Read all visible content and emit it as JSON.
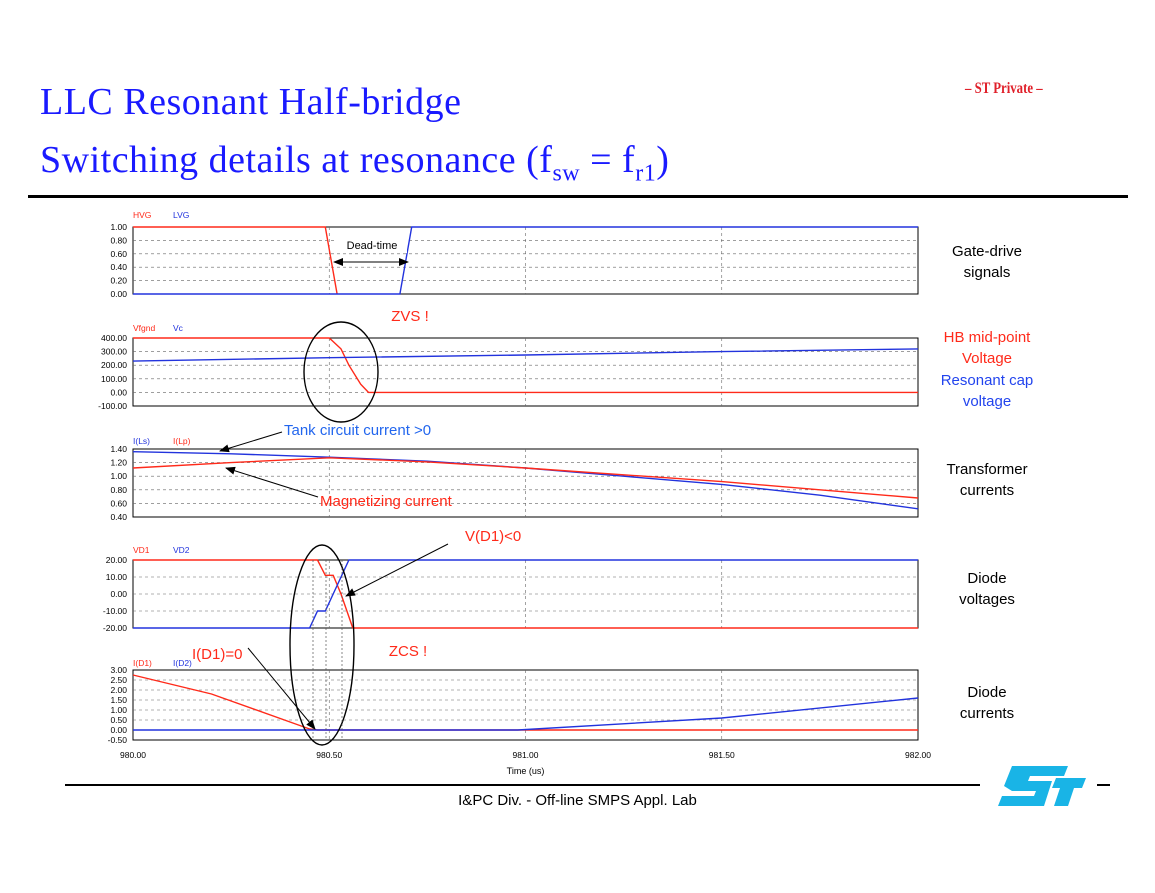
{
  "header": {
    "title_line1": "LLC Resonant Half-bridge",
    "title_line2_prefix": "Switching details at resonance (f",
    "title_line2_sub1": "sw",
    "title_line2_mid": " = f",
    "title_line2_sub2": "r1",
    "title_line2_suffix": ")",
    "badge": "– ST Private –"
  },
  "right_labels": {
    "gate": [
      "Gate-drive",
      "signals"
    ],
    "hb": [
      "HB mid-point",
      "Voltage"
    ],
    "cap": [
      "Resonant cap",
      "voltage"
    ],
    "transformer": [
      "Transformer",
      "currents"
    ],
    "diode_v": [
      "Diode",
      "voltages"
    ],
    "diode_i": [
      "Diode",
      "currents"
    ]
  },
  "annotations": {
    "dead_time": "Dead-time",
    "zvs": "ZVS !",
    "tank": "Tank circuit current >0",
    "magnetizing": "Magnetizing current",
    "vd1": "V(D1)<0",
    "id1": "I(D1)=0",
    "zcs": "ZCS !"
  },
  "footer": {
    "text": "I&PC Div. - Off-line SMPS Appl. Lab",
    "logo": "ST"
  },
  "colors": {
    "red": "#ff2a1a",
    "blue": "#2233dd",
    "title": "#1a1aff",
    "logo": "#19b4e6"
  },
  "chart_data": [
    {
      "type": "line",
      "legend": [
        "HVG",
        "LVG"
      ],
      "ylim": [
        0,
        1
      ],
      "yticks": [
        "1.00",
        "0.80",
        "0.60",
        "0.40",
        "0.20",
        "0.00"
      ],
      "series": [
        {
          "name": "HVG",
          "color": "red",
          "points": [
            [
              980.0,
              1.0
            ],
            [
              980.49,
              1.0
            ],
            [
              980.52,
              0.0
            ]
          ]
        },
        {
          "name": "LVG",
          "color": "blue",
          "points": [
            [
              980.0,
              0.0
            ],
            [
              980.68,
              0.0
            ],
            [
              980.71,
              1.0
            ],
            [
              982.0,
              1.0
            ]
          ]
        }
      ]
    },
    {
      "type": "line",
      "legend": [
        "Vfgnd",
        "Vc"
      ],
      "ylim": [
        -100,
        400
      ],
      "yticks": [
        "400.00",
        "300.00",
        "200.00",
        "100.00",
        "0.00",
        "-100.00"
      ],
      "series": [
        {
          "name": "Vfgnd",
          "color": "red",
          "points": [
            [
              980.0,
              400
            ],
            [
              980.5,
              400
            ],
            [
              980.53,
              320
            ],
            [
              980.55,
              200
            ],
            [
              980.58,
              60
            ],
            [
              980.6,
              0
            ],
            [
              982.0,
              0
            ]
          ]
        },
        {
          "name": "Vc",
          "color": "blue",
          "points": [
            [
              980.0,
              230
            ],
            [
              980.5,
              255
            ],
            [
              981.0,
              275
            ],
            [
              981.5,
              300
            ],
            [
              982.0,
              320
            ]
          ]
        }
      ]
    },
    {
      "type": "line",
      "legend": [
        "I(Ls)",
        "I(Lp)"
      ],
      "ylim": [
        0.4,
        1.4
      ],
      "yticks": [
        "1.40",
        "1.20",
        "1.00",
        "0.80",
        "0.60",
        "0.40"
      ],
      "series": [
        {
          "name": "I(Ls)",
          "color": "blue",
          "points": [
            [
              980.0,
              1.36
            ],
            [
              980.25,
              1.33
            ],
            [
              980.5,
              1.28
            ],
            [
              980.75,
              1.22
            ],
            [
              981.0,
              1.12
            ],
            [
              981.25,
              1.0
            ],
            [
              981.5,
              0.88
            ],
            [
              981.75,
              0.72
            ],
            [
              982.0,
              0.52
            ]
          ]
        },
        {
          "name": "I(Lp)",
          "color": "red",
          "points": [
            [
              980.0,
              1.12
            ],
            [
              980.25,
              1.2
            ],
            [
              980.5,
              1.27
            ],
            [
              980.75,
              1.21
            ],
            [
              981.0,
              1.12
            ],
            [
              981.25,
              1.02
            ],
            [
              981.5,
              0.92
            ],
            [
              981.75,
              0.8
            ],
            [
              982.0,
              0.68
            ]
          ]
        }
      ]
    },
    {
      "type": "line",
      "legend": [
        "VD1",
        "VD2"
      ],
      "ylim": [
        -20,
        20
      ],
      "yticks": [
        "20.00",
        "10.00",
        "0.00",
        "-10.00",
        "-20.00"
      ],
      "series": [
        {
          "name": "VD1",
          "color": "red",
          "points": [
            [
              980.0,
              20
            ],
            [
              980.47,
              20
            ],
            [
              980.49,
              11
            ],
            [
              980.51,
              11
            ],
            [
              980.53,
              0
            ],
            [
              980.56,
              -20
            ],
            [
              982.0,
              -20
            ]
          ]
        },
        {
          "name": "VD2",
          "color": "blue",
          "points": [
            [
              980.0,
              -20
            ],
            [
              980.45,
              -20
            ],
            [
              980.47,
              -10
            ],
            [
              980.49,
              -10
            ],
            [
              980.52,
              5
            ],
            [
              980.55,
              20
            ],
            [
              982.0,
              20
            ]
          ]
        }
      ]
    },
    {
      "type": "line",
      "legend": [
        "I(D1)",
        "I(D2)"
      ],
      "ylim": [
        -0.5,
        3.0
      ],
      "yticks": [
        "3.00",
        "2.50",
        "2.00",
        "1.50",
        "1.00",
        "0.50",
        "0.00",
        "-0.50"
      ],
      "xlabel": "Time (us)",
      "xticks": [
        "980.00",
        "980.50",
        "981.00",
        "981.50",
        "982.00"
      ],
      "series": [
        {
          "name": "I(D1)",
          "color": "red",
          "points": [
            [
              980.0,
              2.75
            ],
            [
              980.2,
              1.8
            ],
            [
              980.45,
              0.05
            ],
            [
              980.47,
              0.0
            ],
            [
              982.0,
              0.0
            ]
          ]
        },
        {
          "name": "I(D2)",
          "color": "blue",
          "points": [
            [
              980.0,
              0.0
            ],
            [
              980.98,
              0.0
            ],
            [
              981.5,
              0.6
            ],
            [
              982.0,
              1.6
            ]
          ]
        }
      ]
    }
  ]
}
